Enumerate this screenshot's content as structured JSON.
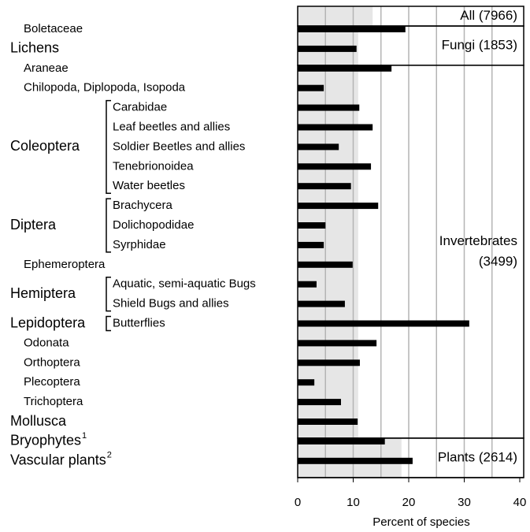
{
  "chart_data": {
    "type": "grouped-bar",
    "xlabel": "Percent of species",
    "xlim": [
      0,
      40
    ],
    "xticks": [
      0,
      10,
      20,
      30,
      40
    ],
    "xminor": [
      5,
      15,
      25,
      35
    ],
    "bar_color": "#000000",
    "shade_color": "#e6e6e6",
    "grid_color": "#b4b4b4",
    "overall": {
      "label": "All (7966)",
      "value": 13.5
    },
    "groups": [
      {
        "label": [
          "Fungi (1853)"
        ],
        "value": 10.9,
        "rows": [
          {
            "label": "Boletaceae",
            "value": 19.4
          },
          {
            "label": "Lichens",
            "value": 10.6,
            "emphasis": true
          }
        ]
      },
      {
        "label": [
          "Invertebrates",
          "(3499)"
        ],
        "value": 10.9,
        "rows": [
          {
            "label": "Araneae",
            "value": 16.9
          },
          {
            "label": "Chilopoda, Diplopoda, Isopoda",
            "value": 4.7
          },
          {
            "label": "Coleoptera",
            "rows": [
              {
                "label": "Carabidae",
                "value": 11.1
              },
              {
                "label": "Leaf beetles and allies",
                "value": 13.5
              },
              {
                "label": "Soldier Beetles and allies",
                "value": 7.4
              },
              {
                "label": "Tenebrionoidea",
                "value": 13.2
              },
              {
                "label": "Water beetles",
                "value": 9.6
              }
            ]
          },
          {
            "label": "Diptera",
            "rows": [
              {
                "label": "Brachycera",
                "value": 14.5
              },
              {
                "label": "Dolichopodidae",
                "value": 5.0
              },
              {
                "label": "Syrphidae",
                "value": 4.7
              }
            ]
          },
          {
            "label": "Ephemeroptera",
            "value": 9.9
          },
          {
            "label": "Hemiptera",
            "rows": [
              {
                "label": "Aquatic, semi-aquatic Bugs",
                "value": 3.4
              },
              {
                "label": "Shield Bugs and allies",
                "value": 8.5
              }
            ]
          },
          {
            "label": "Lepidoptera",
            "rows": [
              {
                "label": "Butterflies",
                "value": 30.9
              }
            ]
          },
          {
            "label": "Odonata",
            "value": 14.2
          },
          {
            "label": "Orthoptera",
            "value": 11.2
          },
          {
            "label": "Plecoptera",
            "value": 3.0
          },
          {
            "label": "Trichoptera",
            "value": 7.8
          },
          {
            "label": "Mollusca",
            "value": 10.8,
            "emphasis": true
          }
        ]
      },
      {
        "label": [
          "Plants (2614)"
        ],
        "value": 18.7,
        "rows": [
          {
            "label": "Bryophytes",
            "note": "1",
            "value": 15.7,
            "emphasis": true
          },
          {
            "label": "Vascular plants",
            "note": "2",
            "value": 20.7,
            "emphasis": true
          }
        ]
      }
    ]
  }
}
